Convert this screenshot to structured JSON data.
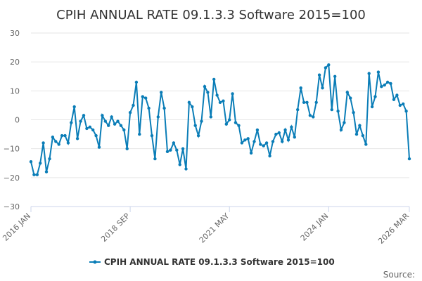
{
  "chart_data": {
    "type": "line",
    "title": "CPIH ANNUAL RATE 09.1.3.3 Software 2015=100",
    "xlabel": "",
    "ylabel": "",
    "ylim": [
      -30,
      30
    ],
    "y_ticks": [
      "30",
      "20",
      "10",
      "0",
      "−10",
      "−20",
      "−30"
    ],
    "y_tick_values": [
      30,
      20,
      10,
      0,
      -10,
      -20,
      -30
    ],
    "x_tick_labels": [
      "2016 JAN",
      "2018 SEP",
      "2021 MAY",
      "2024 JAN",
      "2026 MAR"
    ],
    "x_tick_index": [
      0,
      32,
      64,
      96,
      122
    ],
    "grid": true,
    "legend": "bottom-center",
    "series": [
      {
        "name": "CPIH ANNUAL RATE 09.1.3.3 Software 2015=100",
        "color": "#0a7db7",
        "values": [
          -14.5,
          -19,
          -19,
          -15,
          -8,
          -18,
          -13.5,
          -6,
          -7.5,
          -8.5,
          -5.5,
          -5.5,
          -8,
          -1,
          4.5,
          -6.5,
          -0.5,
          1.5,
          -3,
          -2.5,
          -3.5,
          -5.5,
          -9.5,
          1.5,
          -0.5,
          -2,
          1,
          -1.5,
          -0.5,
          -2,
          -3.5,
          -10,
          2.5,
          5,
          13,
          -5,
          8,
          7.5,
          4,
          -5.5,
          -13.5,
          1,
          9.5,
          4,
          -11,
          -10.5,
          -8,
          -10.5,
          -15.5,
          -10,
          -17,
          6,
          4.5,
          -2,
          -5.5,
          -0.5,
          11.5,
          9.5,
          1,
          14,
          8.5,
          6,
          6.5,
          -1.5,
          0,
          9,
          -1,
          -2,
          -8,
          -7,
          -6.5,
          -11.5,
          -7.5,
          -3.5,
          -8.5,
          -9,
          -8,
          -12.5,
          -7.5,
          -5,
          -4.5,
          -7.5,
          -3.5,
          -7,
          -2.5,
          -6,
          3.5,
          11,
          6,
          6,
          1.5,
          1,
          6,
          15.5,
          11,
          18,
          19,
          3.5,
          15,
          3,
          -3.5,
          -1,
          9.5,
          7.5,
          2.5,
          -5,
          -2,
          -5.5,
          -8.5,
          16,
          4.5,
          8,
          16.5,
          11.5,
          12,
          13,
          12.5,
          7,
          8.5,
          5,
          5.5,
          3,
          -13.5
        ]
      }
    ]
  },
  "source_label": "Source:"
}
